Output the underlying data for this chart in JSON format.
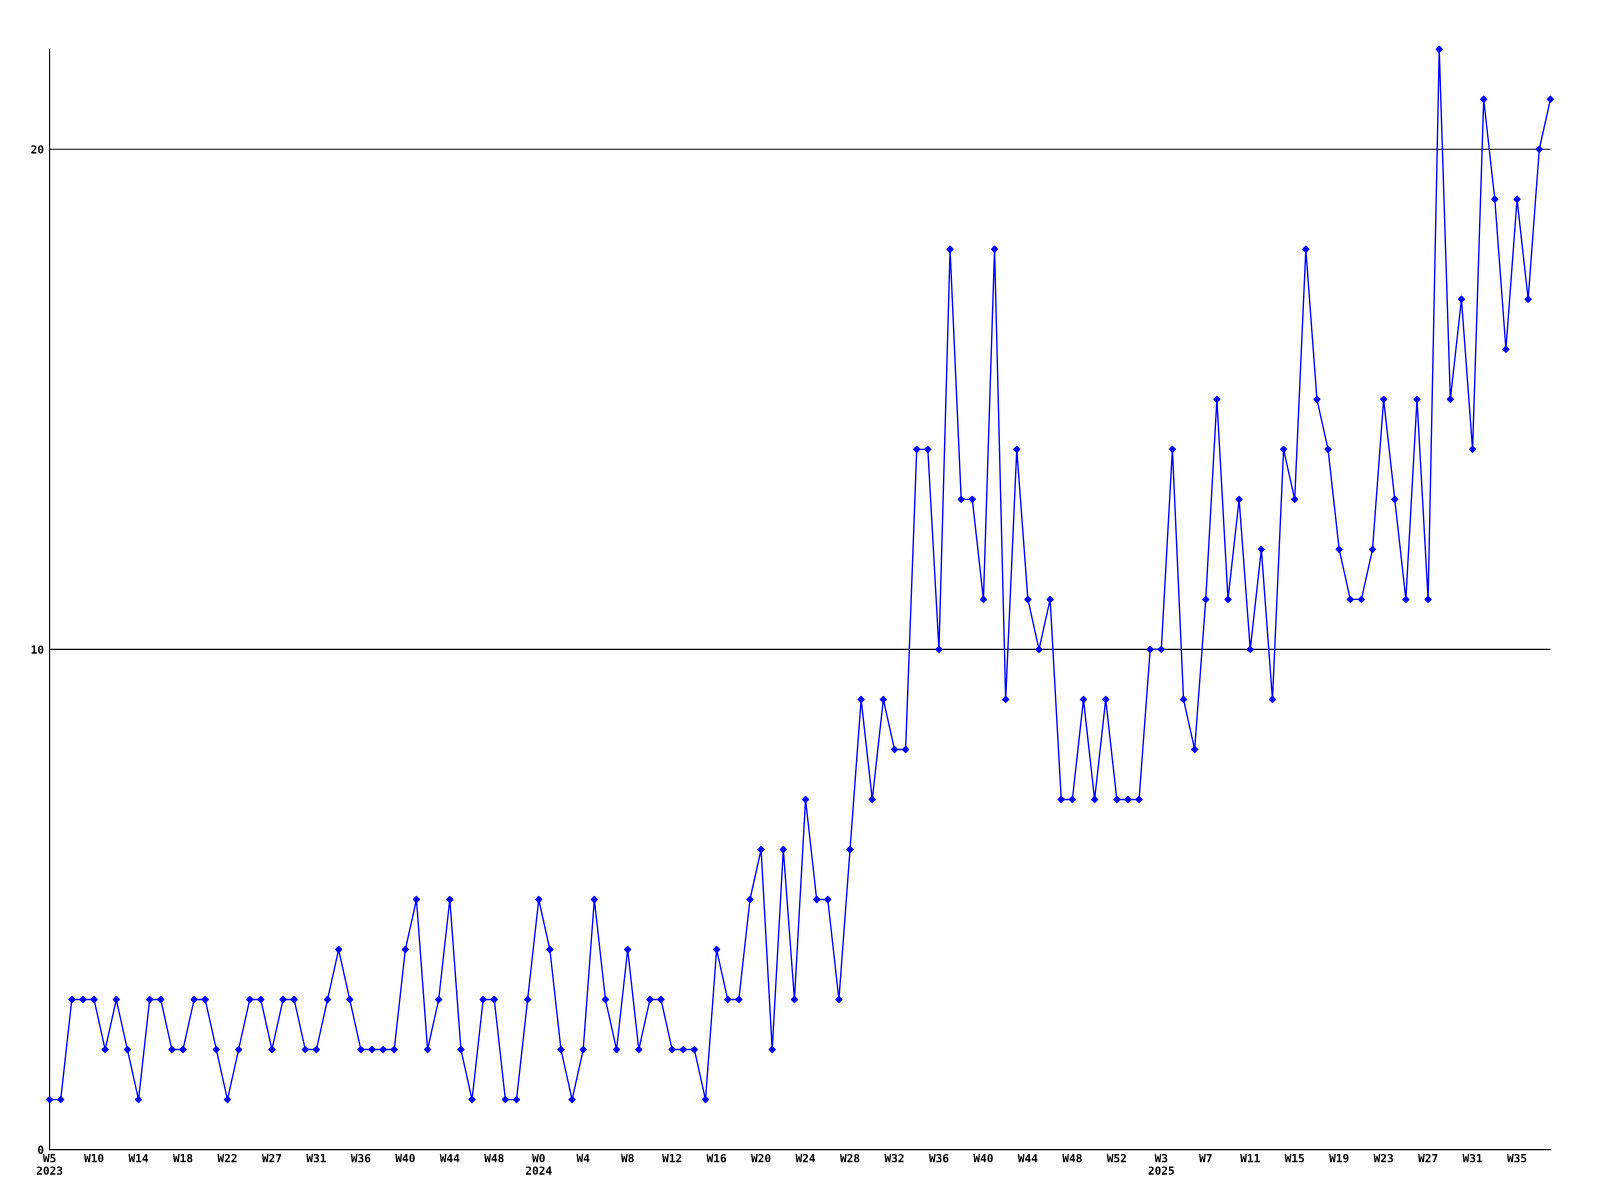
{
  "chart_data": {
    "type": "line",
    "categories": [
      "W5\n2023",
      null,
      null,
      null,
      "W10",
      null,
      null,
      null,
      "W14",
      null,
      null,
      null,
      "W18",
      null,
      null,
      null,
      "W22",
      null,
      null,
      null,
      "W27",
      null,
      null,
      null,
      "W31",
      null,
      null,
      null,
      "W36",
      null,
      null,
      null,
      "W40",
      null,
      null,
      null,
      "W44",
      null,
      null,
      null,
      "W48",
      null,
      null,
      null,
      "W0\n2024",
      null,
      null,
      null,
      "W4",
      null,
      null,
      null,
      "W8",
      null,
      null,
      null,
      "W12",
      null,
      null,
      null,
      "W16",
      null,
      null,
      null,
      "W20",
      null,
      null,
      null,
      "W24",
      null,
      null,
      null,
      "W28",
      null,
      null,
      null,
      "W32",
      null,
      null,
      null,
      "W36",
      null,
      null,
      null,
      "W40",
      null,
      null,
      null,
      "W44",
      null,
      null,
      null,
      "W48",
      null,
      null,
      null,
      "W52",
      null,
      null,
      null,
      "W3\n2025",
      null,
      null,
      null,
      "W7",
      null,
      null,
      null,
      "W11",
      null,
      null,
      null,
      "W15",
      null,
      null,
      null,
      "W19",
      null,
      null,
      null,
      "W23",
      null,
      null,
      null,
      "W27",
      null,
      null,
      null,
      "W31",
      null,
      null,
      null,
      "W35",
      null,
      null,
      null
    ],
    "series": [
      {
        "color": "#0000ff",
        "values": [
          1,
          1,
          3,
          3,
          3,
          2,
          3,
          2,
          1,
          3,
          3,
          2,
          2,
          3,
          3,
          2,
          1,
          2,
          3,
          3,
          2,
          3,
          3,
          2,
          2,
          3,
          4,
          3,
          2,
          2,
          2,
          2,
          4,
          5,
          2,
          3,
          5,
          2,
          1,
          3,
          3,
          1,
          1,
          3,
          5,
          4,
          2,
          1,
          2,
          5,
          3,
          2,
          4,
          2,
          3,
          3,
          2,
          2,
          2,
          1,
          4,
          3,
          3,
          5,
          6,
          2,
          6,
          3,
          7,
          5,
          5,
          3,
          6,
          9,
          7,
          9,
          8,
          8,
          14,
          14,
          10,
          18,
          13,
          13,
          11,
          18,
          9,
          14,
          11,
          10,
          11,
          7,
          7,
          9,
          7,
          9,
          7,
          7,
          7,
          10,
          10,
          14,
          9,
          8,
          11,
          15,
          11,
          13,
          10,
          12,
          9,
          14,
          13,
          18,
          15,
          14,
          12,
          11,
          11,
          12,
          15,
          13,
          11,
          15,
          11,
          22,
          15,
          17,
          14,
          21,
          19,
          16,
          19,
          17,
          20,
          21
        ]
      }
    ],
    "ylim": [
      0,
      22
    ],
    "yticks": [
      0,
      10,
      20
    ],
    "grid": "y",
    "marker": "diamond",
    "line_style": "solid"
  }
}
